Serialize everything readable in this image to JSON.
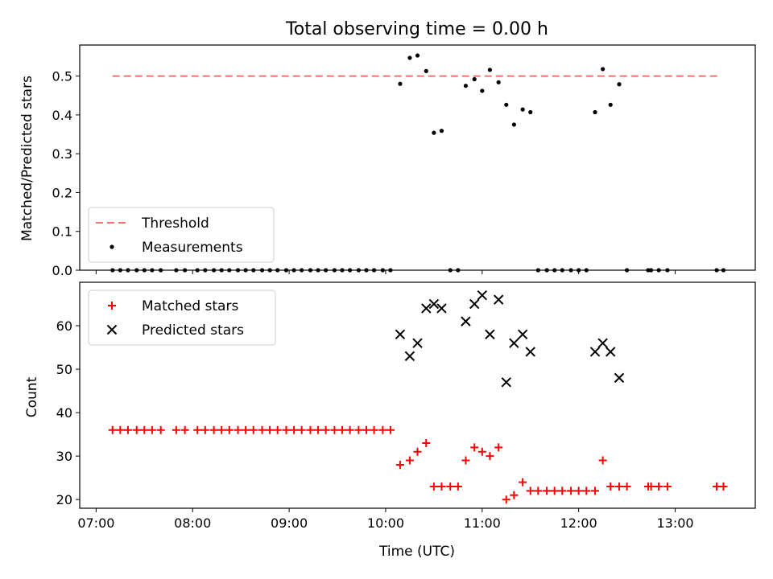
{
  "title": "Total observing time = 0.00 h",
  "chart_data": [
    {
      "type": "scatter",
      "ylabel": "Matched/Predicted stars",
      "ylim": [
        0,
        0.58
      ],
      "yticks": [
        0.0,
        0.1,
        0.2,
        0.3,
        0.4,
        0.5
      ],
      "ytick_labels": [
        "0.0",
        "0.1",
        "0.2",
        "0.3",
        "0.4",
        "0.5"
      ],
      "xlim": [
        6.83,
        13.83
      ],
      "threshold": {
        "name": "Threshold",
        "value": 0.5,
        "x_range": [
          7.17,
          13.47
        ],
        "color": "#f87171",
        "style": "dashed"
      },
      "series": [
        {
          "name": "Measurements",
          "marker": "dot",
          "color": "#000000",
          "points": [
            [
              7.17,
              0
            ],
            [
              7.25,
              0
            ],
            [
              7.33,
              0
            ],
            [
              7.42,
              0
            ],
            [
              7.5,
              0
            ],
            [
              7.58,
              0
            ],
            [
              7.67,
              0
            ],
            [
              7.83,
              0
            ],
            [
              7.92,
              0
            ],
            [
              8.05,
              0
            ],
            [
              8.13,
              0
            ],
            [
              8.22,
              0
            ],
            [
              8.3,
              0
            ],
            [
              8.38,
              0
            ],
            [
              8.47,
              0
            ],
            [
              8.55,
              0
            ],
            [
              8.63,
              0
            ],
            [
              8.72,
              0
            ],
            [
              8.8,
              0
            ],
            [
              8.88,
              0
            ],
            [
              8.97,
              0
            ],
            [
              9.05,
              0
            ],
            [
              9.13,
              0
            ],
            [
              9.22,
              0
            ],
            [
              9.3,
              0
            ],
            [
              9.38,
              0
            ],
            [
              9.47,
              0
            ],
            [
              9.55,
              0
            ],
            [
              9.63,
              0
            ],
            [
              9.72,
              0
            ],
            [
              9.8,
              0
            ],
            [
              9.88,
              0
            ],
            [
              9.97,
              0
            ],
            [
              10.05,
              0
            ],
            [
              10.15,
              0.48
            ],
            [
              10.25,
              0.547
            ],
            [
              10.33,
              0.553
            ],
            [
              10.42,
              0.513
            ],
            [
              10.5,
              0.354
            ],
            [
              10.58,
              0.359
            ],
            [
              10.67,
              0
            ],
            [
              10.75,
              0
            ],
            [
              10.83,
              0.475
            ],
            [
              10.92,
              0.492
            ],
            [
              11.0,
              0.462
            ],
            [
              11.08,
              0.516
            ],
            [
              11.17,
              0.484
            ],
            [
              11.25,
              0.426
            ],
            [
              11.33,
              0.375
            ],
            [
              11.42,
              0.414
            ],
            [
              11.5,
              0.407
            ],
            [
              11.58,
              0
            ],
            [
              11.67,
              0
            ],
            [
              11.75,
              0
            ],
            [
              11.83,
              0
            ],
            [
              11.92,
              0
            ],
            [
              12.0,
              0
            ],
            [
              12.08,
              0
            ],
            [
              12.17,
              0.407
            ],
            [
              12.25,
              0.518
            ],
            [
              12.33,
              0.426
            ],
            [
              12.42,
              0.479
            ],
            [
              12.5,
              0
            ],
            [
              12.72,
              0
            ],
            [
              12.75,
              0
            ],
            [
              12.83,
              0
            ],
            [
              12.92,
              0
            ],
            [
              13.43,
              0
            ],
            [
              13.5,
              0
            ]
          ]
        }
      ],
      "legend": {
        "position": "lower left"
      }
    },
    {
      "type": "scatter",
      "xlabel": "Time (UTC)",
      "ylabel": "Count",
      "ylim": [
        18,
        70
      ],
      "yticks": [
        20,
        30,
        40,
        50,
        60
      ],
      "ytick_labels": [
        "20",
        "30",
        "40",
        "50",
        "60"
      ],
      "xlim": [
        6.83,
        13.83
      ],
      "xticks": [
        7,
        8,
        9,
        10,
        11,
        12,
        13
      ],
      "xtick_labels": [
        "07:00",
        "08:00",
        "09:00",
        "10:00",
        "11:00",
        "12:00",
        "13:00"
      ],
      "series": [
        {
          "name": "Matched stars",
          "marker": "plus",
          "color": "#ff0000",
          "points": [
            [
              7.17,
              36
            ],
            [
              7.25,
              36
            ],
            [
              7.33,
              36
            ],
            [
              7.42,
              36
            ],
            [
              7.5,
              36
            ],
            [
              7.58,
              36
            ],
            [
              7.67,
              36
            ],
            [
              7.83,
              36
            ],
            [
              7.92,
              36
            ],
            [
              8.05,
              36
            ],
            [
              8.13,
              36
            ],
            [
              8.22,
              36
            ],
            [
              8.3,
              36
            ],
            [
              8.38,
              36
            ],
            [
              8.47,
              36
            ],
            [
              8.55,
              36
            ],
            [
              8.63,
              36
            ],
            [
              8.72,
              36
            ],
            [
              8.8,
              36
            ],
            [
              8.88,
              36
            ],
            [
              8.97,
              36
            ],
            [
              9.05,
              36
            ],
            [
              9.13,
              36
            ],
            [
              9.22,
              36
            ],
            [
              9.3,
              36
            ],
            [
              9.38,
              36
            ],
            [
              9.47,
              36
            ],
            [
              9.55,
              36
            ],
            [
              9.63,
              36
            ],
            [
              9.72,
              36
            ],
            [
              9.8,
              36
            ],
            [
              9.88,
              36
            ],
            [
              9.97,
              36
            ],
            [
              10.05,
              36
            ],
            [
              10.15,
              28
            ],
            [
              10.25,
              29
            ],
            [
              10.33,
              31
            ],
            [
              10.42,
              33
            ],
            [
              10.5,
              23
            ],
            [
              10.58,
              23
            ],
            [
              10.67,
              23
            ],
            [
              10.75,
              23
            ],
            [
              10.83,
              29
            ],
            [
              10.92,
              32
            ],
            [
              11.0,
              31
            ],
            [
              11.08,
              30
            ],
            [
              11.17,
              32
            ],
            [
              11.25,
              20
            ],
            [
              11.33,
              21
            ],
            [
              11.42,
              24
            ],
            [
              11.5,
              22
            ],
            [
              11.58,
              22
            ],
            [
              11.67,
              22
            ],
            [
              11.75,
              22
            ],
            [
              11.83,
              22
            ],
            [
              11.92,
              22
            ],
            [
              12.0,
              22
            ],
            [
              12.08,
              22
            ],
            [
              12.17,
              22
            ],
            [
              12.25,
              29
            ],
            [
              12.33,
              23
            ],
            [
              12.42,
              23
            ],
            [
              12.5,
              23
            ],
            [
              12.72,
              23
            ],
            [
              12.75,
              23
            ],
            [
              12.83,
              23
            ],
            [
              12.92,
              23
            ],
            [
              13.43,
              23
            ],
            [
              13.5,
              23
            ]
          ]
        },
        {
          "name": "Predicted stars",
          "marker": "x",
          "color": "#000000",
          "points": [
            [
              10.15,
              58
            ],
            [
              10.25,
              53
            ],
            [
              10.33,
              56
            ],
            [
              10.42,
              64
            ],
            [
              10.5,
              65
            ],
            [
              10.58,
              64
            ],
            [
              10.83,
              61
            ],
            [
              10.92,
              65
            ],
            [
              11.0,
              67
            ],
            [
              11.08,
              58
            ],
            [
              11.17,
              66
            ],
            [
              11.25,
              47
            ],
            [
              11.33,
              56
            ],
            [
              11.42,
              58
            ],
            [
              11.5,
              54
            ],
            [
              12.17,
              54
            ],
            [
              12.25,
              56
            ],
            [
              12.33,
              54
            ],
            [
              12.42,
              48
            ]
          ]
        }
      ],
      "legend": {
        "position": "upper left"
      }
    }
  ]
}
